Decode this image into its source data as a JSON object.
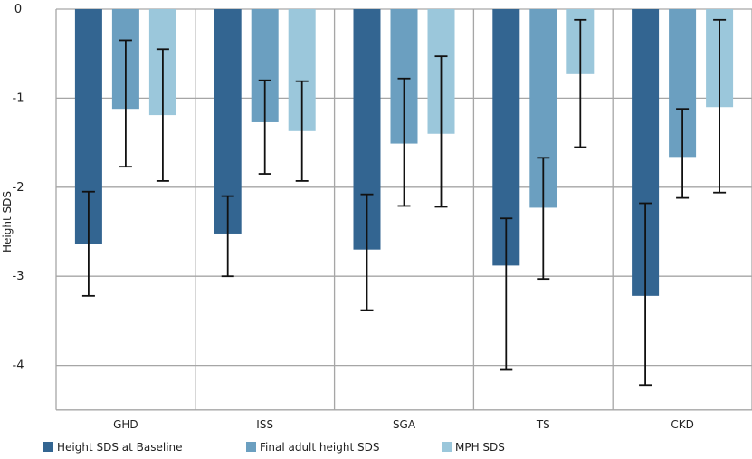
{
  "chart_data": {
    "type": "bar",
    "title": "",
    "xlabel": "",
    "ylabel": "Height SDS",
    "ylim": [
      -4.5,
      0
    ],
    "yticks": [
      0,
      -1,
      -2,
      -3,
      -4
    ],
    "ytick_labels": [
      "0",
      "-1",
      "-2",
      "-3",
      "-4"
    ],
    "grid": true,
    "legend_position": "bottom",
    "categories": [
      "GHD",
      "ISS",
      "SGA",
      "TS",
      "CKD"
    ],
    "series": [
      {
        "name": "Height SDS at Baseline",
        "color": "#336591",
        "values": [
          -2.64,
          -2.52,
          -2.7,
          -2.88,
          -3.22
        ],
        "err_low": [
          -3.22,
          -3.0,
          -3.38,
          -4.05,
          -4.22
        ],
        "err_high": [
          -2.05,
          -2.1,
          -2.08,
          -2.35,
          -2.18
        ]
      },
      {
        "name": "Final adult height SDS",
        "color": "#6b9fc0",
        "values": [
          -1.12,
          -1.27,
          -1.51,
          -2.23,
          -1.66
        ],
        "err_low": [
          -1.77,
          -1.85,
          -2.21,
          -3.03,
          -2.12
        ],
        "err_high": [
          -0.35,
          -0.8,
          -0.78,
          -1.67,
          -1.12
        ]
      },
      {
        "name": "MPH SDS",
        "color": "#9bc7db",
        "values": [
          -1.19,
          -1.37,
          -1.4,
          -0.73,
          -1.1
        ],
        "err_low": [
          -1.93,
          -1.93,
          -2.22,
          -1.55,
          -2.06
        ],
        "err_high": [
          -0.45,
          -0.81,
          -0.53,
          -0.12,
          -0.12
        ]
      }
    ]
  }
}
